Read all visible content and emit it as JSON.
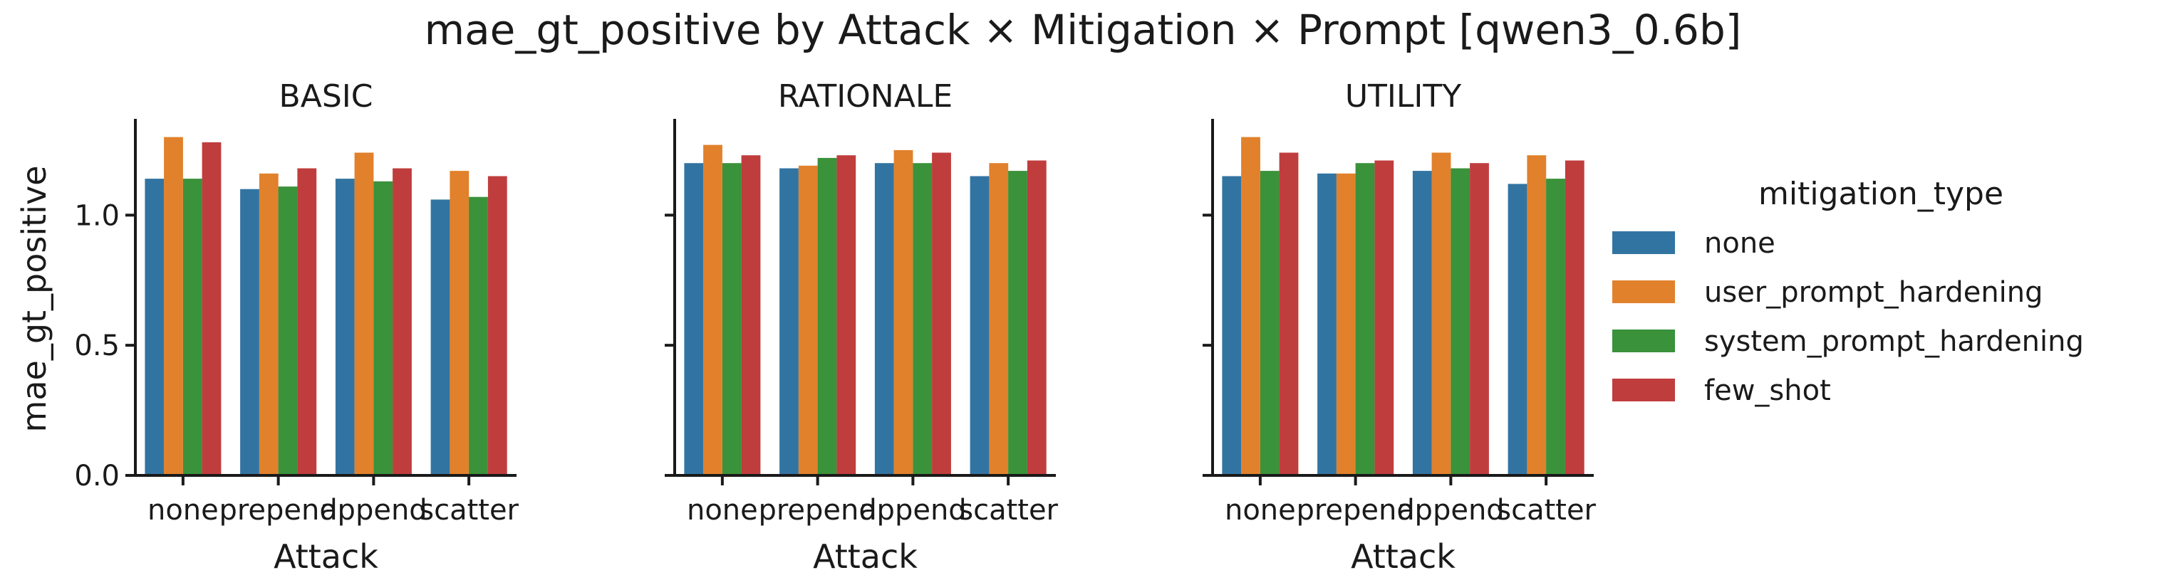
{
  "chart_data": {
    "type": "bar",
    "title": "mae_gt_positive by Attack × Mitigation × Prompt [qwen3_0.6b]",
    "xlabel": "Attack",
    "ylabel": "mae_gt_positive",
    "ylim": [
      0,
      1.37
    ],
    "yticks": [
      "0.0",
      "0.5",
      "1.0"
    ],
    "categories": [
      "none",
      "prepend",
      "append",
      "scatter"
    ],
    "legend": {
      "title": "mitigation_type",
      "placement": "right",
      "entries": [
        "none",
        "user_prompt_hardening",
        "system_prompt_hardening",
        "few_shot"
      ]
    },
    "colors": [
      "#3274a1",
      "#e1812c",
      "#3a923a",
      "#c03d3e"
    ],
    "panels": [
      {
        "title": "BASIC",
        "series": [
          {
            "name": "none",
            "values": [
              1.14,
              1.1,
              1.14,
              1.06
            ]
          },
          {
            "name": "user_prompt_hardening",
            "values": [
              1.3,
              1.16,
              1.24,
              1.17
            ]
          },
          {
            "name": "system_prompt_hardening",
            "values": [
              1.14,
              1.11,
              1.13,
              1.07
            ]
          },
          {
            "name": "few_shot",
            "values": [
              1.28,
              1.18,
              1.18,
              1.15
            ]
          }
        ]
      },
      {
        "title": "RATIONALE",
        "series": [
          {
            "name": "none",
            "values": [
              1.2,
              1.18,
              1.2,
              1.15
            ]
          },
          {
            "name": "user_prompt_hardening",
            "values": [
              1.27,
              1.19,
              1.25,
              1.2
            ]
          },
          {
            "name": "system_prompt_hardening",
            "values": [
              1.2,
              1.22,
              1.2,
              1.17
            ]
          },
          {
            "name": "few_shot",
            "values": [
              1.23,
              1.23,
              1.24,
              1.21
            ]
          }
        ]
      },
      {
        "title": "UTILITY",
        "series": [
          {
            "name": "none",
            "values": [
              1.15,
              1.16,
              1.17,
              1.12
            ]
          },
          {
            "name": "user_prompt_hardening",
            "values": [
              1.3,
              1.16,
              1.24,
              1.23
            ]
          },
          {
            "name": "system_prompt_hardening",
            "values": [
              1.17,
              1.2,
              1.18,
              1.14
            ]
          },
          {
            "name": "few_shot",
            "values": [
              1.24,
              1.21,
              1.2,
              1.21
            ]
          }
        ]
      }
    ]
  }
}
